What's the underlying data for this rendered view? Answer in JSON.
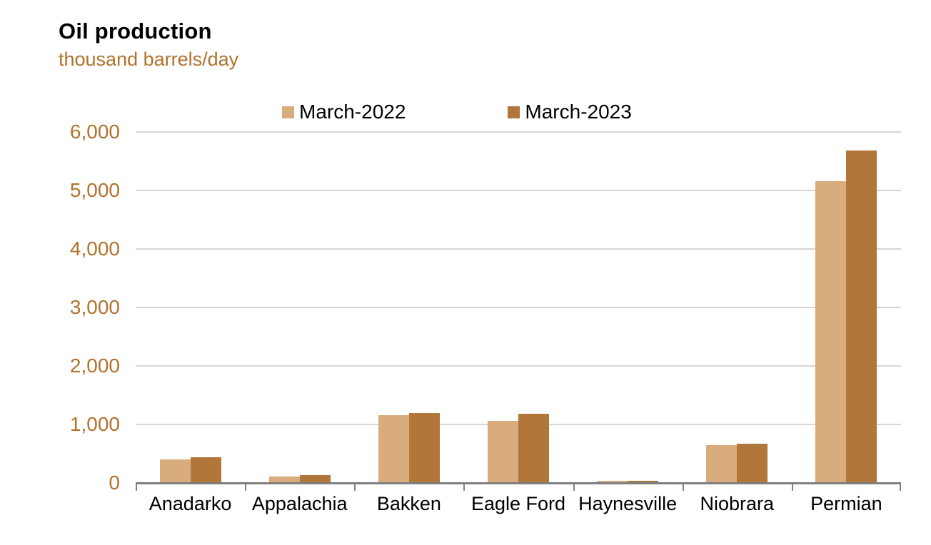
{
  "chart_data": {
    "type": "bar",
    "title": "Oil production",
    "subtitle": "thousand barrels/day",
    "ylabel": "thousand barrels/day",
    "xlabel": "",
    "categories": [
      "Anadarko",
      "Appalachia",
      "Bakken",
      "Eagle Ford",
      "Haynesville",
      "Niobrara",
      "Permian"
    ],
    "series": [
      {
        "name": "March-2022",
        "color": "#d9ac7d",
        "values": [
          405,
          115,
          1155,
          1060,
          32,
          645,
          5160
        ]
      },
      {
        "name": "March-2023",
        "color": "#b0763a",
        "values": [
          440,
          140,
          1195,
          1180,
          38,
          670,
          5685
        ]
      }
    ],
    "ylim": [
      0,
      6000
    ],
    "ytick_interval": 1000,
    "ytick_labels": [
      "0",
      "1,000",
      "2,000",
      "3,000",
      "4,000",
      "5,000",
      "6,000"
    ],
    "grid": true,
    "legend_position": "top"
  },
  "colors": {
    "title_text": "#000000",
    "subtitle_text": "#b1722c",
    "axis_label_text": "#b1722c",
    "category_text": "#000000",
    "gridline": "#d5d5d5",
    "axis_line": "#7f7f7f",
    "series_1": "#d9ac7d",
    "series_2": "#b0763a",
    "background": "#ffffff"
  }
}
